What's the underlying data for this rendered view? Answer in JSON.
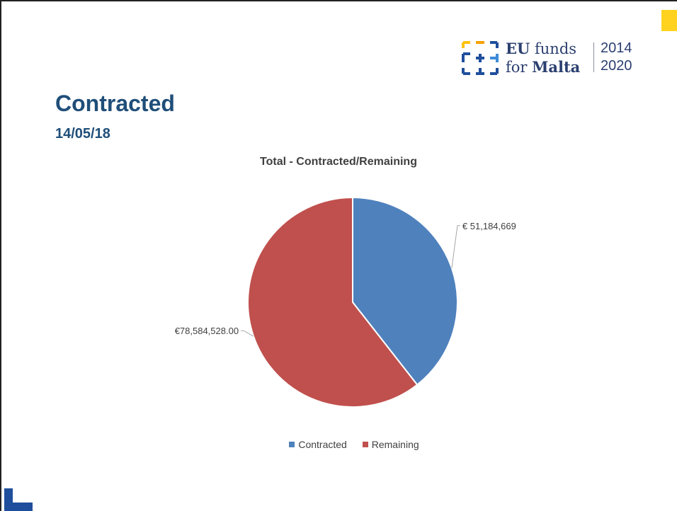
{
  "slide": {
    "title": "Contracted",
    "date": "14/05/18"
  },
  "logo": {
    "line1_bold": "EU",
    "line1_rest": " funds",
    "line2_pre": "for ",
    "line2_bold": "Malta",
    "year_start": "2014",
    "year_end": "2020"
  },
  "chart_data": {
    "type": "pie",
    "title": "Total - Contracted/Remaining",
    "categories": [
      "Contracted",
      "Remaining"
    ],
    "values": [
      51184669,
      78584528
    ],
    "data_labels": [
      "€ 51,184,669",
      "€78,584,528.00"
    ],
    "colors": [
      "#4f81bd",
      "#c0504d"
    ],
    "legend_position": "bottom"
  }
}
